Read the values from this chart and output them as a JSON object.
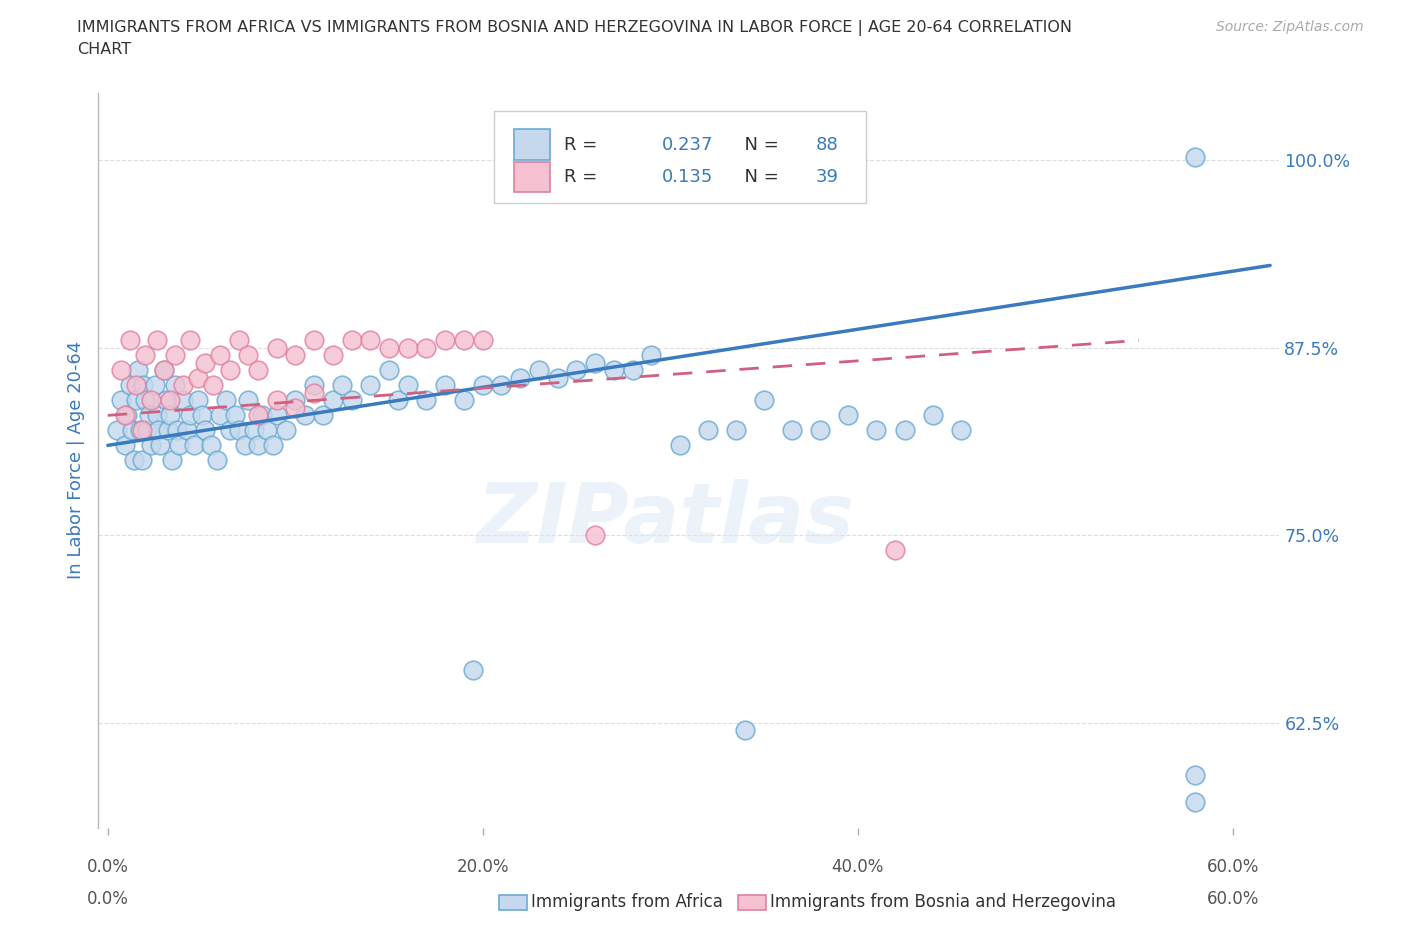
{
  "title_line1": "IMMIGRANTS FROM AFRICA VS IMMIGRANTS FROM BOSNIA AND HERZEGOVINA IN LABOR FORCE | AGE 20-64 CORRELATION",
  "title_line2": "CHART",
  "source": "Source: ZipAtlas.com",
  "ylabel": "In Labor Force | Age 20-64",
  "xlim": [
    -0.005,
    0.625
  ],
  "ylim": [
    0.555,
    1.045
  ],
  "xtick_vals": [
    0.0,
    0.2,
    0.4,
    0.6
  ],
  "xtick_labels": [
    "",
    "",
    "",
    ""
  ],
  "ytick_vals_right": [
    0.625,
    0.75,
    0.875,
    1.0
  ],
  "ytick_labels_right": [
    "62.5%",
    "75.0%",
    "87.5%",
    "100.0%"
  ],
  "r_africa": 0.237,
  "n_africa": 88,
  "r_bosnia": 0.135,
  "n_bosnia": 39,
  "color_africa_fill": "#c5d8ed",
  "color_africa_edge": "#6aaad4",
  "color_africa_line": "#3a7abf",
  "color_bosnia_fill": "#f5c0d0",
  "color_bosnia_edge": "#e080a0",
  "color_bosnia_line": "#d06080",
  "legend_label_africa": "Immigrants from Africa",
  "legend_label_bosnia": "Immigrants from Bosnia and Herzegovina",
  "watermark": "ZIPatlas",
  "grid_color": "#dddddd",
  "text_color_blue": "#3a7abf",
  "africa_x": [
    0.005,
    0.007,
    0.009,
    0.01,
    0.012,
    0.013,
    0.014,
    0.015,
    0.016,
    0.017,
    0.018,
    0.019,
    0.02,
    0.021,
    0.022,
    0.023,
    0.025,
    0.026,
    0.027,
    0.028,
    0.03,
    0.031,
    0.032,
    0.033,
    0.034,
    0.036,
    0.037,
    0.038,
    0.04,
    0.042,
    0.044,
    0.046,
    0.048,
    0.05,
    0.052,
    0.055,
    0.058,
    0.06,
    0.063,
    0.065,
    0.068,
    0.07,
    0.073,
    0.075,
    0.078,
    0.08,
    0.082,
    0.085,
    0.088,
    0.09,
    0.095,
    0.1,
    0.105,
    0.11,
    0.115,
    0.12,
    0.125,
    0.13,
    0.14,
    0.15,
    0.155,
    0.16,
    0.17,
    0.18,
    0.19,
    0.2,
    0.21,
    0.22,
    0.23,
    0.24,
    0.25,
    0.26,
    0.27,
    0.28,
    0.29,
    0.305,
    0.32,
    0.335,
    0.35,
    0.365,
    0.38,
    0.395,
    0.41,
    0.425,
    0.44,
    0.455,
    0.58,
    0.58
  ],
  "africa_y": [
    0.82,
    0.84,
    0.81,
    0.83,
    0.85,
    0.82,
    0.8,
    0.84,
    0.86,
    0.82,
    0.8,
    0.85,
    0.84,
    0.82,
    0.83,
    0.81,
    0.85,
    0.83,
    0.82,
    0.81,
    0.86,
    0.84,
    0.82,
    0.83,
    0.8,
    0.85,
    0.82,
    0.81,
    0.84,
    0.82,
    0.83,
    0.81,
    0.84,
    0.83,
    0.82,
    0.81,
    0.8,
    0.83,
    0.84,
    0.82,
    0.83,
    0.82,
    0.81,
    0.84,
    0.82,
    0.81,
    0.83,
    0.82,
    0.81,
    0.83,
    0.82,
    0.84,
    0.83,
    0.85,
    0.83,
    0.84,
    0.85,
    0.84,
    0.85,
    0.86,
    0.84,
    0.85,
    0.84,
    0.85,
    0.84,
    0.85,
    0.85,
    0.855,
    0.86,
    0.855,
    0.86,
    0.865,
    0.86,
    0.86,
    0.87,
    0.81,
    0.82,
    0.82,
    0.84,
    0.82,
    0.82,
    0.83,
    0.82,
    0.82,
    0.83,
    0.82,
    0.59,
    0.572
  ],
  "africa_x_outlier": [
    0.58
  ],
  "africa_y_outlier": [
    1.002
  ],
  "africa_x_low1": [
    0.195
  ],
  "africa_y_low1": [
    0.66
  ],
  "africa_x_low2": [
    0.34
  ],
  "africa_y_low2": [
    0.62
  ],
  "bosnia_x": [
    0.007,
    0.009,
    0.012,
    0.015,
    0.018,
    0.02,
    0.023,
    0.026,
    0.03,
    0.033,
    0.036,
    0.04,
    0.044,
    0.048,
    0.052,
    0.056,
    0.06,
    0.065,
    0.07,
    0.075,
    0.08,
    0.09,
    0.1,
    0.11,
    0.12,
    0.13,
    0.14,
    0.15,
    0.16,
    0.17,
    0.18,
    0.19,
    0.2,
    0.08,
    0.09,
    0.1,
    0.11,
    0.42,
    0.26
  ],
  "bosnia_y": [
    0.86,
    0.83,
    0.88,
    0.85,
    0.82,
    0.87,
    0.84,
    0.88,
    0.86,
    0.84,
    0.87,
    0.85,
    0.88,
    0.855,
    0.865,
    0.85,
    0.87,
    0.86,
    0.88,
    0.87,
    0.86,
    0.875,
    0.87,
    0.88,
    0.87,
    0.88,
    0.88,
    0.875,
    0.875,
    0.875,
    0.88,
    0.88,
    0.88,
    0.83,
    0.84,
    0.835,
    0.845,
    0.74,
    0.75
  ]
}
